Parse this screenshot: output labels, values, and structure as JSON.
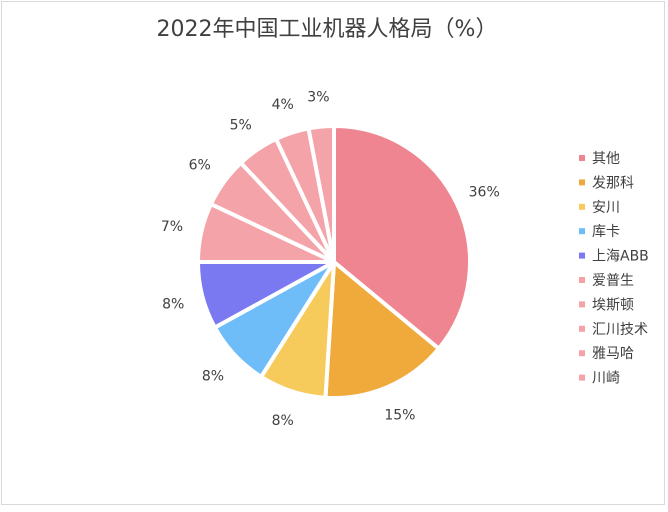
{
  "chart_data": {
    "type": "pie",
    "title": "2022年中国工业机器人格局（%）",
    "categories": [
      "其他",
      "发那科",
      "安川",
      "库卡",
      "上海ABB",
      "爱普生",
      "埃斯顿",
      "汇川技术",
      "雅马哈",
      "川崎"
    ],
    "values": [
      36,
      15,
      8,
      8,
      8,
      7,
      6,
      5,
      4,
      3
    ],
    "labels": [
      "36%",
      "15%",
      "8%",
      "8%",
      "8%",
      "7%",
      "6%",
      "5%",
      "4%",
      "3%"
    ],
    "colors": [
      "#ef8590",
      "#f0aa3c",
      "#f7ca5c",
      "#6ebdf8",
      "#7b79f1",
      "#f4a3a9",
      "#f4a3a9",
      "#f4a3a9",
      "#f4a3a9",
      "#f4a3a9"
    ],
    "legend_position": "right",
    "start_angle_deg": 0,
    "direction": "clockwise"
  }
}
